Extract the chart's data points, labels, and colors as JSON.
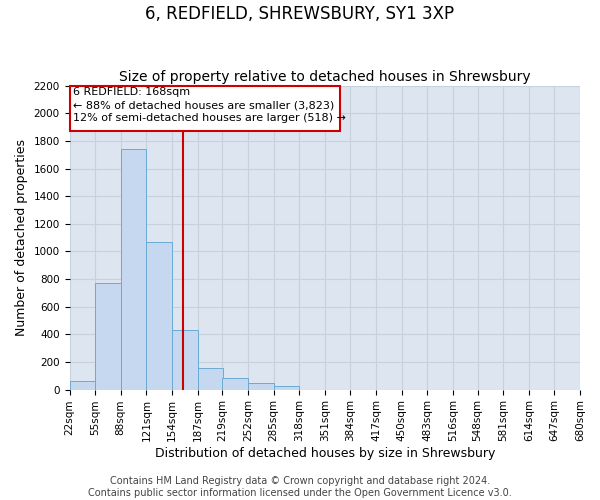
{
  "title": "6, REDFIELD, SHREWSBURY, SY1 3XP",
  "subtitle": "Size of property relative to detached houses in Shrewsbury",
  "xlabel": "Distribution of detached houses by size in Shrewsbury",
  "ylabel": "Number of detached properties",
  "bar_left_edges": [
    22,
    55,
    88,
    121,
    154,
    187,
    219,
    252,
    285,
    318,
    351,
    384,
    417,
    450,
    483,
    516,
    548,
    581,
    614,
    647
  ],
  "bar_heights": [
    60,
    770,
    1740,
    1070,
    430,
    155,
    85,
    45,
    25,
    0,
    0,
    0,
    0,
    0,
    0,
    0,
    0,
    0,
    0,
    0
  ],
  "bin_width": 33,
  "xtick_labels": [
    "22sqm",
    "55sqm",
    "88sqm",
    "121sqm",
    "154sqm",
    "187sqm",
    "219sqm",
    "252sqm",
    "285sqm",
    "318sqm",
    "351sqm",
    "384sqm",
    "417sqm",
    "450sqm",
    "483sqm",
    "516sqm",
    "548sqm",
    "581sqm",
    "614sqm",
    "647sqm",
    "680sqm"
  ],
  "bar_color": "#c5d8ef",
  "bar_edge_color": "#6aaad4",
  "grid_color": "#c8d0dc",
  "background_color": "#dde6f0",
  "vline_x": 168,
  "vline_color": "#cc0000",
  "annotation_title": "6 REDFIELD: 168sqm",
  "annotation_line1": "← 88% of detached houses are smaller (3,823)",
  "annotation_line2": "12% of semi-detached houses are larger (518) →",
  "annotation_box_facecolor": "#ffffff",
  "annotation_box_edgecolor": "#cc0000",
  "ylim": [
    0,
    2200
  ],
  "yticks": [
    0,
    200,
    400,
    600,
    800,
    1000,
    1200,
    1400,
    1600,
    1800,
    2000,
    2200
  ],
  "footer_line1": "Contains HM Land Registry data © Crown copyright and database right 2024.",
  "footer_line2": "Contains public sector information licensed under the Open Government Licence v3.0.",
  "title_fontsize": 12,
  "subtitle_fontsize": 10,
  "axis_label_fontsize": 9,
  "tick_fontsize": 7.5,
  "annotation_fontsize": 8,
  "footer_fontsize": 7
}
